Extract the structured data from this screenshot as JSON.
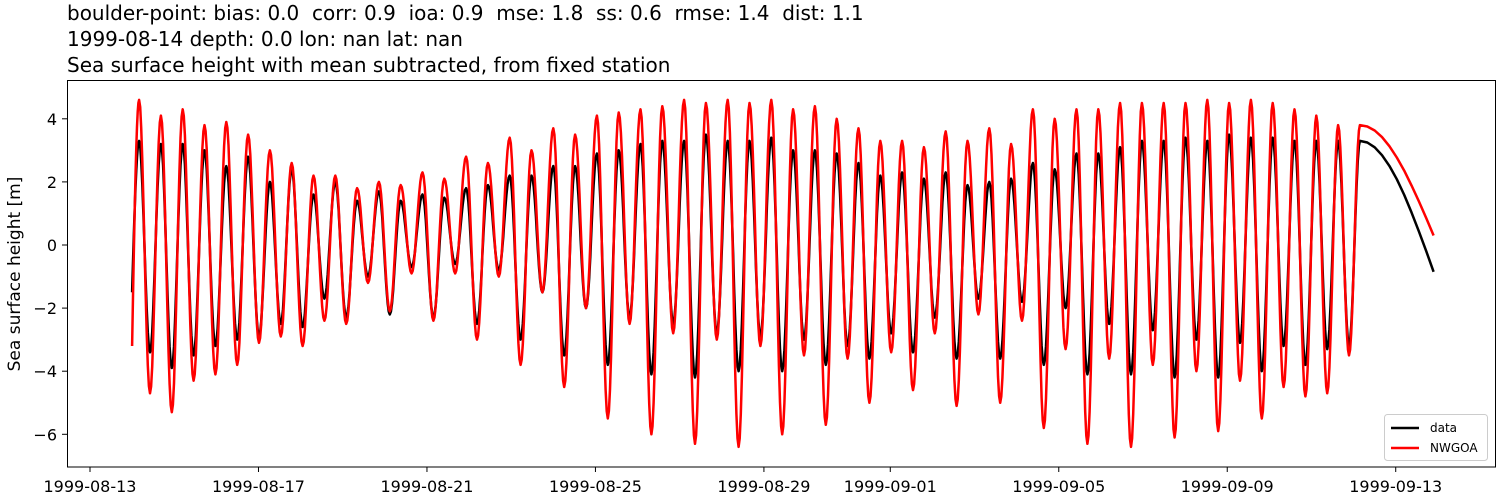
{
  "chart_data": {
    "type": "line",
    "title_lines": [
      "boulder-point: bias: 0.0  corr: 0.9  ioa: 0.9  mse: 1.8  ss: 0.6  rmse: 1.4  dist: 1.1",
      "1999-08-14 depth: 0.0 lon: nan lat: nan",
      "Sea surface height with mean subtracted, from fixed station"
    ],
    "xlabel": "",
    "ylabel": "Sea surface height [m]",
    "ylim": [
      -7.05,
      5.24
    ],
    "xlim_days_from_1999_08_13": [
      -0.55,
      33.4
    ],
    "grid": false,
    "legend_position": "lower right",
    "x_ticks": [
      {
        "label": "1999-08-13",
        "day": 0
      },
      {
        "label": "1999-08-17",
        "day": 4
      },
      {
        "label": "1999-08-21",
        "day": 8
      },
      {
        "label": "1999-08-25",
        "day": 12
      },
      {
        "label": "1999-08-29",
        "day": 16
      },
      {
        "label": "1999-09-01",
        "day": 19
      },
      {
        "label": "1999-09-05",
        "day": 23
      },
      {
        "label": "1999-09-09",
        "day": 27
      },
      {
        "label": "1999-09-13",
        "day": 31
      }
    ],
    "y_ticks": [
      {
        "label": "4",
        "value": 4
      },
      {
        "label": "2",
        "value": 2
      },
      {
        "label": "0",
        "value": 0
      },
      {
        "label": "−2",
        "value": -2
      },
      {
        "label": "−4",
        "value": -4
      },
      {
        "label": "−6",
        "value": -6
      }
    ],
    "x_start_day": 1.0,
    "x_end_day": 31.9,
    "first_extremum_day": 1.165,
    "half_period_days": 0.2588,
    "series": [
      {
        "name": "data",
        "color": "#000000",
        "start_value": -1.5,
        "end_value": -0.85,
        "extrema": [
          3.3,
          -3.4,
          3.2,
          -3.9,
          3.2,
          -3.5,
          3.0,
          -3.2,
          2.5,
          -3.0,
          2.8,
          -2.9,
          2.0,
          -2.5,
          2.4,
          -2.6,
          1.6,
          -1.7,
          2.0,
          -2.3,
          1.4,
          -1.0,
          1.7,
          -2.2,
          1.4,
          -0.7,
          1.6,
          -2.3,
          1.5,
          -0.6,
          1.8,
          -2.5,
          1.9,
          -0.8,
          2.2,
          -3.0,
          2.2,
          -1.5,
          2.5,
          -3.5,
          2.5,
          -2.0,
          2.9,
          -3.8,
          3.0,
          -2.3,
          3.2,
          -4.1,
          3.3,
          -2.5,
          3.3,
          -4.2,
          3.5,
          -2.8,
          3.3,
          -4.0,
          3.3,
          -2.9,
          3.4,
          -4.0,
          3.0,
          -3.0,
          3.0,
          -3.8,
          2.9,
          -3.2,
          2.6,
          -3.6,
          2.2,
          -2.8,
          2.3,
          -3.4,
          2.1,
          -2.3,
          2.3,
          -3.6,
          1.9,
          -1.7,
          2.0,
          -3.6,
          2.1,
          -1.8,
          2.6,
          -3.8,
          2.4,
          -2.0,
          2.9,
          -4.1,
          2.9,
          -2.5,
          3.1,
          -4.1,
          3.3,
          -2.7,
          3.3,
          -4.2,
          3.4,
          -3.0,
          3.3,
          -4.2,
          3.5,
          -3.1,
          3.4,
          -4.0,
          3.4,
          -3.2,
          3.3,
          -3.8,
          3.3,
          -3.3,
          3.3,
          -3.2,
          3.3
        ],
        "values_note": "alternating high/low tide extrema (m) read from the plot, semidiurnal spacing"
      },
      {
        "name": "NWGOA",
        "color": "#ff0000",
        "start_value": -3.2,
        "end_value": 0.3,
        "extrema": [
          4.6,
          -4.7,
          4.1,
          -5.3,
          4.3,
          -4.3,
          3.8,
          -4.1,
          3.9,
          -3.8,
          3.5,
          -3.1,
          3.0,
          -2.9,
          2.6,
          -3.2,
          2.2,
          -2.4,
          2.2,
          -2.5,
          1.8,
          -1.2,
          2.0,
          -2.1,
          1.9,
          -0.9,
          2.3,
          -2.4,
          2.1,
          -0.9,
          2.8,
          -3.0,
          2.6,
          -1.0,
          3.4,
          -3.8,
          3.0,
          -1.5,
          3.7,
          -4.5,
          3.5,
          -2.0,
          4.1,
          -5.5,
          4.2,
          -2.5,
          4.3,
          -6.0,
          4.4,
          -2.8,
          4.6,
          -6.3,
          4.5,
          -3.0,
          4.6,
          -6.4,
          4.5,
          -3.2,
          4.6,
          -6.0,
          4.3,
          -3.5,
          4.4,
          -5.7,
          4.0,
          -3.6,
          3.7,
          -5.0,
          3.3,
          -3.4,
          3.3,
          -4.6,
          3.1,
          -2.8,
          3.6,
          -5.1,
          3.3,
          -2.2,
          3.7,
          -5.0,
          3.2,
          -2.4,
          4.3,
          -5.8,
          4.0,
          -3.3,
          4.3,
          -6.3,
          4.3,
          -3.6,
          4.5,
          -6.4,
          4.5,
          -3.8,
          4.5,
          -6.1,
          4.5,
          -4.0,
          4.6,
          -5.9,
          4.5,
          -4.3,
          4.6,
          -5.5,
          4.5,
          -4.5,
          4.3,
          -4.8,
          4.1,
          -4.7,
          3.8,
          -3.5,
          3.8
        ],
        "values_note": "alternating high/low tide extrema (m) read from the plot, semidiurnal spacing"
      }
    ]
  },
  "legend": {
    "items": [
      {
        "label": "data",
        "color": "#000000"
      },
      {
        "label": "NWGOA",
        "color": "#ff0000"
      }
    ]
  }
}
